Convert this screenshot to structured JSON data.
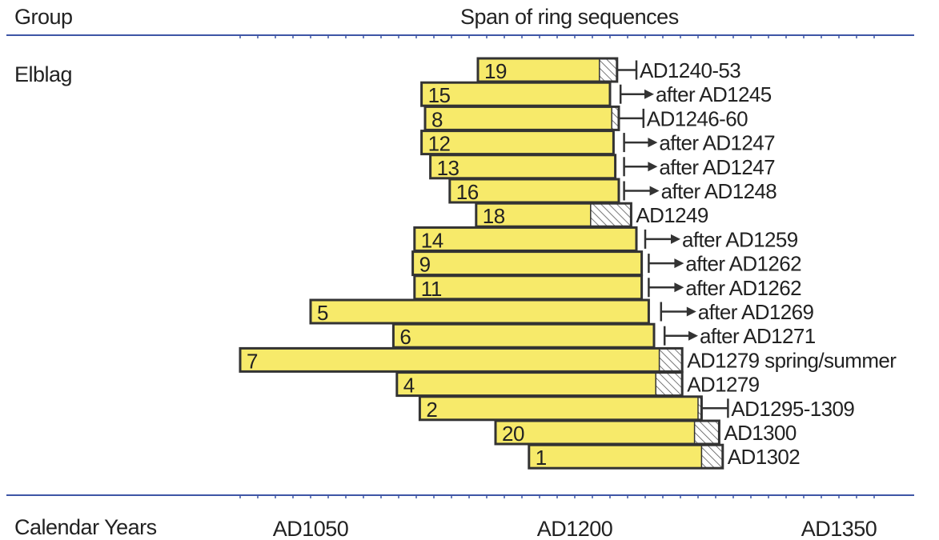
{
  "header": {
    "group_col": "Group",
    "span_col": "Span of ring sequences",
    "footer_label": "Calendar Years"
  },
  "group": {
    "name": "Elblag"
  },
  "chart_data": {
    "type": "bar",
    "xaxis": {
      "label": "Calendar Years",
      "range": [
        1010,
        1367
      ],
      "tick_labels": [
        {
          "value": 1050,
          "label": "AD1050"
        },
        {
          "value": 1200,
          "label": "AD1200"
        },
        {
          "value": 1350,
          "label": "AD1350"
        }
      ]
    },
    "colors": {
      "heartwood": "#f7ea6a",
      "sapwood": "#ffffff",
      "outline": "#333333",
      "axis": "#3e55a6"
    },
    "samples": [
      {
        "id": "19",
        "start": 1145,
        "heart_end": 1214,
        "sap_end": 1224,
        "felling": "AD1240-53"
      },
      {
        "id": "15",
        "start": 1113,
        "heart_end": 1220,
        "sap_end": 1220,
        "felling": "after AD1245"
      },
      {
        "id": "8",
        "start": 1115,
        "heart_end": 1221,
        "sap_end": 1225,
        "felling": "AD1246-60"
      },
      {
        "id": "12",
        "start": 1113,
        "heart_end": 1222,
        "sap_end": 1222,
        "felling": "after AD1247"
      },
      {
        "id": "13",
        "start": 1118,
        "heart_end": 1223,
        "sap_end": 1223,
        "felling": "after AD1247"
      },
      {
        "id": "16",
        "start": 1129,
        "heart_end": 1225,
        "sap_end": 1225,
        "felling": "after AD1248"
      },
      {
        "id": "18",
        "start": 1144,
        "heart_end": 1209,
        "sap_end": 1232,
        "felling": "AD1249"
      },
      {
        "id": "14",
        "start": 1109,
        "heart_end": 1235,
        "sap_end": 1235,
        "felling": "after AD1259"
      },
      {
        "id": "9",
        "start": 1108,
        "heart_end": 1238,
        "sap_end": 1238,
        "felling": "after AD1262"
      },
      {
        "id": "11",
        "start": 1109,
        "heart_end": 1238,
        "sap_end": 1238,
        "felling": "after AD1262"
      },
      {
        "id": "5",
        "start": 1050,
        "heart_end": 1242,
        "sap_end": 1242,
        "felling": "after AD1269"
      },
      {
        "id": "6",
        "start": 1097,
        "heart_end": 1245,
        "sap_end": 1245,
        "felling": "after AD1271"
      },
      {
        "id": "7",
        "start": 1010,
        "heart_end": 1248,
        "sap_end": 1261,
        "felling": "AD1279 spring/summer"
      },
      {
        "id": "4",
        "start": 1099,
        "heart_end": 1246,
        "sap_end": 1261,
        "felling": "AD1279"
      },
      {
        "id": "2",
        "start": 1112,
        "heart_end": 1270,
        "sap_end": 1272,
        "felling": "AD1295-1309"
      },
      {
        "id": "20",
        "start": 1155,
        "heart_end": 1268,
        "sap_end": 1282,
        "felling": "AD1300"
      },
      {
        "id": "1",
        "start": 1174,
        "heart_end": 1272,
        "sap_end": 1284,
        "felling": "AD1302"
      }
    ],
    "indicators": [
      {
        "id": "19",
        "type": "range",
        "x1": 1224,
        "x2": 1235
      },
      {
        "id": "15",
        "type": "after",
        "x1": 1226,
        "x2": 1245
      },
      {
        "id": "8",
        "type": "range",
        "x1": 1225,
        "x2": 1239
      },
      {
        "id": "12",
        "type": "after",
        "x1": 1228,
        "x2": 1247
      },
      {
        "id": "13",
        "type": "after",
        "x1": 1228,
        "x2": 1247
      },
      {
        "id": "16",
        "type": "after",
        "x1": 1228,
        "x2": 1248
      },
      {
        "id": "18",
        "type": "none"
      },
      {
        "id": "14",
        "type": "after",
        "x1": 1240,
        "x2": 1260
      },
      {
        "id": "9",
        "type": "after",
        "x1": 1242,
        "x2": 1262
      },
      {
        "id": "11",
        "type": "after",
        "x1": 1242,
        "x2": 1262
      },
      {
        "id": "5",
        "type": "after",
        "x1": 1249,
        "x2": 1269
      },
      {
        "id": "6",
        "type": "after",
        "x1": 1251,
        "x2": 1270
      },
      {
        "id": "7",
        "type": "none"
      },
      {
        "id": "4",
        "type": "none"
      },
      {
        "id": "2",
        "type": "range",
        "x1": 1272,
        "x2": 1287
      },
      {
        "id": "20",
        "type": "none"
      },
      {
        "id": "1",
        "type": "none"
      }
    ]
  }
}
